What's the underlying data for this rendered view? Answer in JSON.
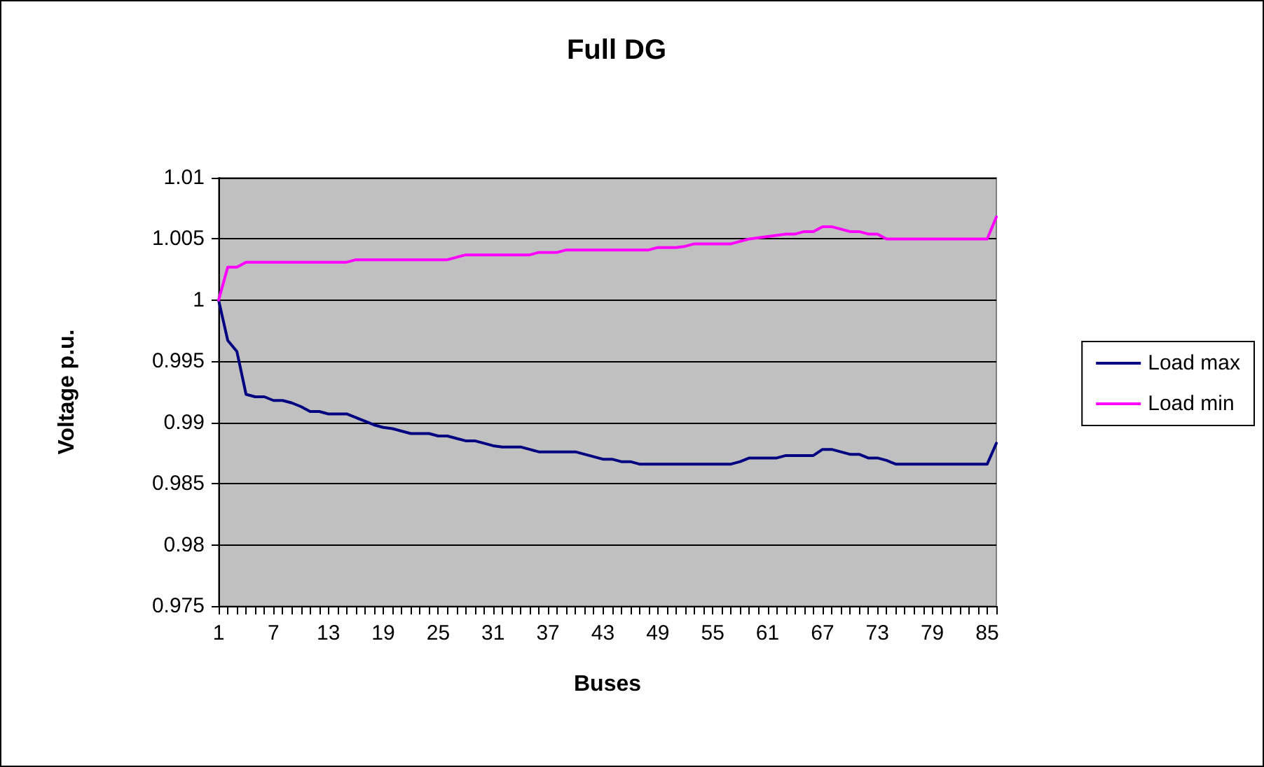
{
  "chart_data": {
    "type": "line",
    "title": "Full DG",
    "xlabel": "Buses",
    "ylabel": "Voltage p.u.",
    "categories": [
      "1",
      null,
      null,
      null,
      null,
      null,
      "7",
      null,
      null,
      null,
      null,
      null,
      "13",
      null,
      null,
      null,
      null,
      null,
      "19",
      null,
      null,
      null,
      null,
      null,
      "25",
      null,
      null,
      null,
      null,
      null,
      "31",
      null,
      null,
      null,
      null,
      null,
      "37",
      null,
      null,
      null,
      null,
      null,
      "43",
      null,
      null,
      null,
      null,
      null,
      "49",
      null,
      null,
      null,
      null,
      null,
      "55",
      null,
      null,
      null,
      null,
      null,
      "61",
      null,
      null,
      null,
      null,
      null,
      "67",
      null,
      null,
      null,
      null,
      null,
      "73",
      null,
      null,
      null,
      null,
      null,
      "79",
      null,
      null,
      null,
      null,
      null,
      "85",
      null
    ],
    "series": [
      {
        "name": "Load max",
        "color": "#000080",
        "values": [
          1.0,
          0.9967,
          0.9958,
          0.9923,
          0.9921,
          0.9921,
          0.9918,
          0.9918,
          0.9916,
          0.9913,
          0.9909,
          0.9909,
          0.9907,
          0.9907,
          0.9907,
          0.9904,
          0.9901,
          0.9898,
          0.9896,
          0.9895,
          0.9893,
          0.9891,
          0.9891,
          0.9891,
          0.9889,
          0.9889,
          0.9887,
          0.9885,
          0.9885,
          0.9883,
          0.9881,
          0.988,
          0.988,
          0.988,
          0.9878,
          0.9876,
          0.9876,
          0.9876,
          0.9876,
          0.9876,
          0.9874,
          0.9872,
          0.987,
          0.987,
          0.9868,
          0.9868,
          0.9866,
          0.9866,
          0.9866,
          0.9866,
          0.9866,
          0.9866,
          0.9866,
          0.9866,
          0.9866,
          0.9866,
          0.9866,
          0.9868,
          0.9871,
          0.9871,
          0.9871,
          0.9871,
          0.9873,
          0.9873,
          0.9873,
          0.9873,
          0.9878,
          0.9878,
          0.9876,
          0.9874,
          0.9874,
          0.9871,
          0.9871,
          0.9869,
          0.9866,
          0.9866,
          0.9866,
          0.9866,
          0.9866,
          0.9866,
          0.9866,
          0.9866,
          0.9866,
          0.9866,
          0.9866,
          0.9883
        ]
      },
      {
        "name": "Load min",
        "color": "#ff00ff",
        "values": [
          1.0,
          1.0027,
          1.0027,
          1.0031,
          1.0031,
          1.0031,
          1.0031,
          1.0031,
          1.0031,
          1.0031,
          1.0031,
          1.0031,
          1.0031,
          1.0031,
          1.0031,
          1.0033,
          1.0033,
          1.0033,
          1.0033,
          1.0033,
          1.0033,
          1.0033,
          1.0033,
          1.0033,
          1.0033,
          1.0033,
          1.0035,
          1.0037,
          1.0037,
          1.0037,
          1.0037,
          1.0037,
          1.0037,
          1.0037,
          1.0037,
          1.0039,
          1.0039,
          1.0039,
          1.0041,
          1.0041,
          1.0041,
          1.0041,
          1.0041,
          1.0041,
          1.0041,
          1.0041,
          1.0041,
          1.0041,
          1.0043,
          1.0043,
          1.0043,
          1.0044,
          1.0046,
          1.0046,
          1.0046,
          1.0046,
          1.0046,
          1.0048,
          1.005,
          1.0051,
          1.0052,
          1.0053,
          1.0054,
          1.0054,
          1.0056,
          1.0056,
          1.006,
          1.006,
          1.0058,
          1.0056,
          1.0056,
          1.0054,
          1.0054,
          1.005,
          1.005,
          1.005,
          1.005,
          1.005,
          1.005,
          1.005,
          1.005,
          1.005,
          1.005,
          1.005,
          1.005,
          1.0068
        ]
      }
    ],
    "ylim": [
      0.975,
      1.01
    ],
    "yticks": [
      0.975,
      0.98,
      0.985,
      0.99,
      0.995,
      1,
      1.005,
      1.01
    ],
    "grid": "y",
    "legend": "right",
    "marker": "none",
    "line_style": "solid"
  }
}
